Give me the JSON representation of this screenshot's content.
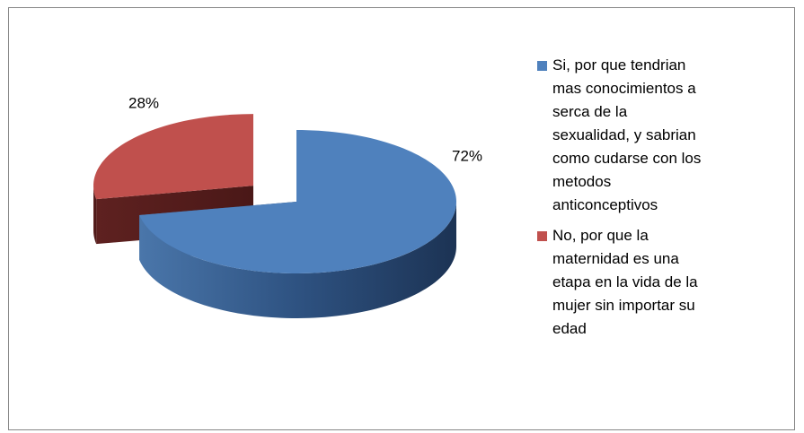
{
  "chart_data": {
    "type": "pie",
    "categories": [
      "Si, por que tendrian mas conocimientos a serca de la sexualidad, y sabrian como cudarse con los metodos anticonceptivos",
      "No, por que la maternidad es una etapa en la vida de la mujer sin importar su edad"
    ],
    "values": [
      72,
      28
    ],
    "value_labels": [
      "72%",
      "28%"
    ],
    "colors": [
      "#4f81bd",
      "#c0504d"
    ],
    "legend": "right"
  }
}
